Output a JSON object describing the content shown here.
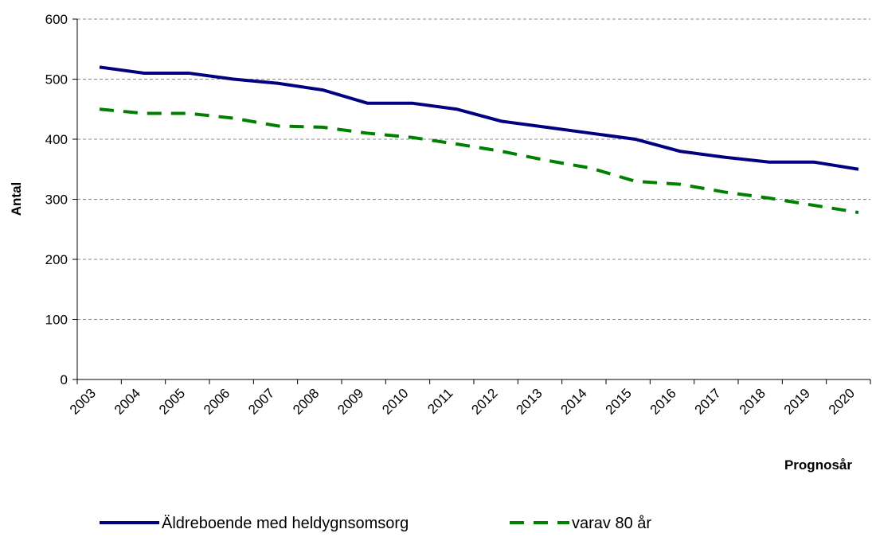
{
  "chart_data": {
    "type": "line",
    "x_label": "Prognosår",
    "y_label": "Antal",
    "categories": [
      "2003",
      "2004",
      "2005",
      "2006",
      "2007",
      "2008",
      "2009",
      "2010",
      "2011",
      "2012",
      "2013",
      "2014",
      "2015",
      "2016",
      "2017",
      "2018",
      "2019",
      "2020"
    ],
    "series": [
      {
        "name": "Äldreboende med heldygnsomsorg",
        "color": "#000080",
        "dash": false,
        "values": [
          520,
          510,
          510,
          500,
          493,
          482,
          460,
          460,
          450,
          430,
          420,
          410,
          400,
          380,
          370,
          362,
          362,
          350
        ]
      },
      {
        "name": "varav 80 år",
        "color": "#008000",
        "dash": true,
        "values": [
          450,
          443,
          443,
          435,
          422,
          420,
          410,
          403,
          392,
          380,
          365,
          352,
          330,
          325,
          312,
          302,
          290,
          278
        ]
      }
    ],
    "ylim": [
      0,
      600
    ],
    "yticks": [
      0,
      100,
      200,
      300,
      400,
      500,
      600
    ],
    "grid": true
  }
}
